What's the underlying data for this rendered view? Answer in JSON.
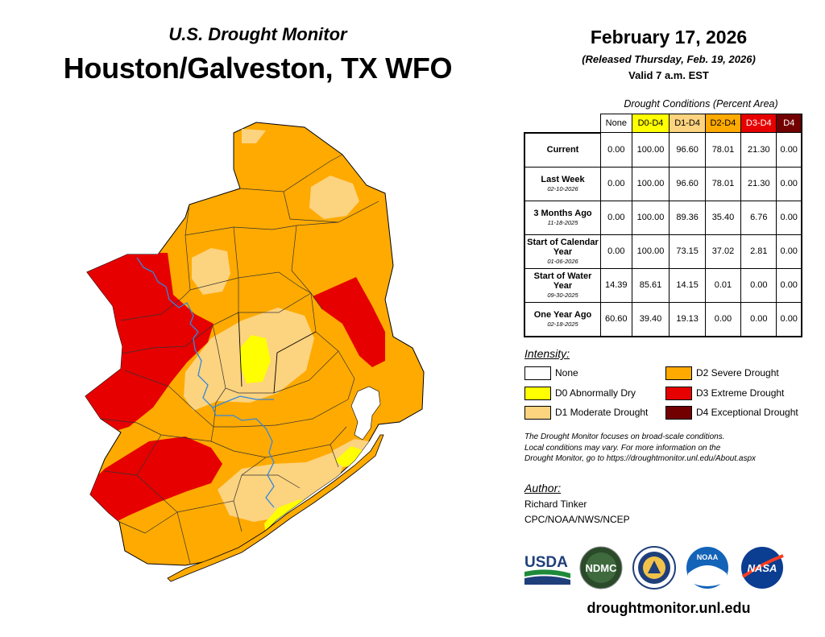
{
  "header": {
    "subtitle": "U.S. Drought Monitor",
    "title": "Houston/Galveston, TX WFO",
    "date": "February 17, 2026",
    "released": "(Released Thursday, Feb. 19, 2026)",
    "valid": "Valid 7 a.m. EST"
  },
  "table": {
    "caption": "Drought Conditions (Percent Area)",
    "columns": [
      {
        "label": "None",
        "color": "#ffffff",
        "text_color": "#000000"
      },
      {
        "label": "D0-D4",
        "color": "#ffff00",
        "text_color": "#000000"
      },
      {
        "label": "D1-D4",
        "color": "#fcd37f",
        "text_color": "#000000"
      },
      {
        "label": "D2-D4",
        "color": "#ffaa00",
        "text_color": "#000000"
      },
      {
        "label": "D3-D4",
        "color": "#e60000",
        "text_color": "#ffffff"
      },
      {
        "label": "D4",
        "color": "#730000",
        "text_color": "#ffffff"
      }
    ],
    "rows": [
      {
        "label": "Current",
        "date": "",
        "values": [
          "0.00",
          "100.00",
          "96.60",
          "78.01",
          "21.30",
          "0.00"
        ]
      },
      {
        "label": "Last Week",
        "date": "02-10-2026",
        "values": [
          "0.00",
          "100.00",
          "96.60",
          "78.01",
          "21.30",
          "0.00"
        ]
      },
      {
        "label": "3 Months Ago",
        "date": "11-18-2025",
        "values": [
          "0.00",
          "100.00",
          "89.36",
          "35.40",
          "6.76",
          "0.00"
        ]
      },
      {
        "label": "Start of Calendar Year",
        "date": "01-06-2026",
        "values": [
          "0.00",
          "100.00",
          "73.15",
          "37.02",
          "2.81",
          "0.00"
        ]
      },
      {
        "label": "Start of Water Year",
        "date": "09-30-2025",
        "values": [
          "14.39",
          "85.61",
          "14.15",
          "0.01",
          "0.00",
          "0.00"
        ]
      },
      {
        "label": "One Year Ago",
        "date": "02-18-2025",
        "values": [
          "60.60",
          "39.40",
          "19.13",
          "0.00",
          "0.00",
          "0.00"
        ]
      }
    ]
  },
  "legend": {
    "title": "Intensity:",
    "items": [
      {
        "label": "None",
        "color": "#ffffff"
      },
      {
        "label": "D0 Abnormally Dry",
        "color": "#ffff00"
      },
      {
        "label": "D1 Moderate Drought",
        "color": "#fcd37f"
      },
      {
        "label": "D2 Severe Drought",
        "color": "#ffaa00"
      },
      {
        "label": "D3 Extreme Drought",
        "color": "#e60000"
      },
      {
        "label": "D4 Exceptional Drought",
        "color": "#730000"
      }
    ]
  },
  "note": {
    "line1": "The Drought Monitor focuses on broad-scale conditions.",
    "line2": "Local conditions may vary. For more information on the",
    "line3": "Drought Monitor, go to https://droughtmonitor.unl.edu/About.aspx"
  },
  "author": {
    "title": "Author:",
    "name": "Richard Tinker",
    "org": "CPC/NOAA/NWS/NCEP"
  },
  "logos": {
    "usda": "USDA",
    "ndmc": "NDMC",
    "noaa": "NOAA",
    "nasa": "NASA"
  },
  "site": "droughtmonitor.unl.edu",
  "map": {
    "region": "Houston/Galveston, TX WFO",
    "colors": {
      "d0": "#ffff00",
      "d1": "#fcd37f",
      "d2": "#ffaa00",
      "d3": "#e60000",
      "river": "#3388dd",
      "water": "#ffffff"
    }
  }
}
